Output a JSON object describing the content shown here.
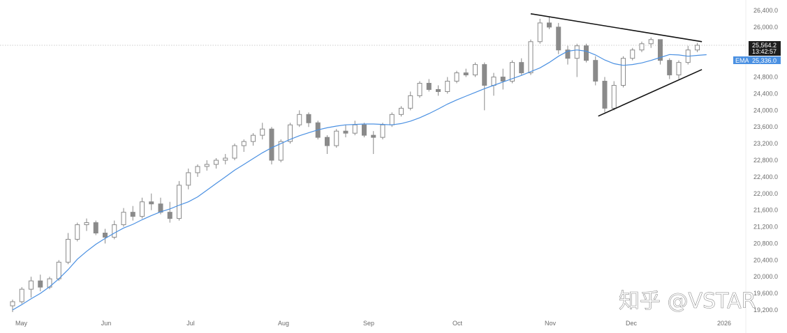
{
  "chart_data": {
    "type": "candlestick",
    "y_ticks": [
      "26,400.0",
      "26,000.0",
      "25,600.0",
      "25,200.0",
      "24,800.0",
      "24,400.0",
      "24,000.0",
      "23,600.0",
      "23,200.0",
      "22,800.0",
      "22,400.0",
      "22,000.0",
      "21,600.0",
      "21,200.0",
      "20,800.0",
      "20,400.0",
      "20,000.0",
      "19,600.0",
      "19,200.0"
    ],
    "y_tick_values": [
      26400,
      26000,
      25600,
      25200,
      24800,
      24400,
      24000,
      23600,
      23200,
      22800,
      22400,
      22000,
      21600,
      21200,
      20800,
      20400,
      20000,
      19600,
      19200
    ],
    "x_ticks": [
      "May",
      "Jun",
      "Jul",
      "Aug",
      "Sep",
      "Oct",
      "Nov",
      "Dec",
      "2026"
    ],
    "ylim": [
      19100,
      26550
    ],
    "grid": false,
    "last_price": {
      "value": 25564.2,
      "label": "25,564.2",
      "countdown": "13:42:57",
      "color": "#1e1e1e"
    },
    "ema": {
      "name": "EMA",
      "value": 25336.0,
      "label": "25,336.0",
      "color": "#4a90e2",
      "values": [
        19200,
        19330,
        19470,
        19600,
        19760,
        19950,
        20170,
        20420,
        20610,
        20780,
        20920,
        21050,
        21170,
        21260,
        21370,
        21470,
        21560,
        21630,
        21720,
        21800,
        21920,
        22080,
        22240,
        22400,
        22560,
        22700,
        22840,
        22980,
        23100,
        23200,
        23300,
        23390,
        23460,
        23530,
        23580,
        23620,
        23650,
        23660,
        23670,
        23670,
        23660,
        23650,
        23680,
        23740,
        23820,
        23920,
        24030,
        24150,
        24250,
        24340,
        24430,
        24520,
        24600,
        24680,
        24760,
        24840,
        24930,
        25020,
        25150,
        25300,
        25420,
        25450,
        25420,
        25330,
        25210,
        25120,
        25080,
        25100,
        25140,
        25200,
        25270,
        25340,
        25330,
        25300,
        25320,
        25336
      ]
    },
    "candles": [
      {
        "o": 19300,
        "h": 19450,
        "l": 19150,
        "c": 19400
      },
      {
        "o": 19400,
        "h": 19750,
        "l": 19350,
        "c": 19700
      },
      {
        "o": 19700,
        "h": 20000,
        "l": 19500,
        "c": 19900
      },
      {
        "o": 19900,
        "h": 20050,
        "l": 19650,
        "c": 19750
      },
      {
        "o": 19750,
        "h": 20000,
        "l": 19700,
        "c": 19950
      },
      {
        "o": 19950,
        "h": 20400,
        "l": 19900,
        "c": 20350
      },
      {
        "o": 20350,
        "h": 21050,
        "l": 20300,
        "c": 20900
      },
      {
        "o": 20900,
        "h": 21300,
        "l": 20850,
        "c": 21250
      },
      {
        "o": 21250,
        "h": 21400,
        "l": 21100,
        "c": 21300
      },
      {
        "o": 21300,
        "h": 21350,
        "l": 21000,
        "c": 21050
      },
      {
        "o": 21050,
        "h": 21150,
        "l": 20800,
        "c": 20950
      },
      {
        "o": 20950,
        "h": 21350,
        "l": 20900,
        "c": 21250
      },
      {
        "o": 21250,
        "h": 21650,
        "l": 21200,
        "c": 21550
      },
      {
        "o": 21550,
        "h": 21700,
        "l": 21350,
        "c": 21450
      },
      {
        "o": 21450,
        "h": 21900,
        "l": 21400,
        "c": 21800
      },
      {
        "o": 21800,
        "h": 22000,
        "l": 21600,
        "c": 21750
      },
      {
        "o": 21750,
        "h": 21900,
        "l": 21500,
        "c": 21550
      },
      {
        "o": 21550,
        "h": 21800,
        "l": 21300,
        "c": 21400
      },
      {
        "o": 21400,
        "h": 22300,
        "l": 21350,
        "c": 22200
      },
      {
        "o": 22200,
        "h": 22600,
        "l": 22100,
        "c": 22500
      },
      {
        "o": 22500,
        "h": 22700,
        "l": 22400,
        "c": 22650
      },
      {
        "o": 22650,
        "h": 22800,
        "l": 22550,
        "c": 22700
      },
      {
        "o": 22700,
        "h": 22850,
        "l": 22600,
        "c": 22800
      },
      {
        "o": 22800,
        "h": 22950,
        "l": 22700,
        "c": 22850
      },
      {
        "o": 22850,
        "h": 23200,
        "l": 22800,
        "c": 23150
      },
      {
        "o": 23150,
        "h": 23300,
        "l": 23000,
        "c": 23250
      },
      {
        "o": 23250,
        "h": 23450,
        "l": 23150,
        "c": 23400
      },
      {
        "o": 23400,
        "h": 23700,
        "l": 23300,
        "c": 23550
      },
      {
        "o": 23550,
        "h": 23600,
        "l": 22700,
        "c": 22800
      },
      {
        "o": 22800,
        "h": 23300,
        "l": 22750,
        "c": 23250
      },
      {
        "o": 23250,
        "h": 23700,
        "l": 23200,
        "c": 23650
      },
      {
        "o": 23650,
        "h": 24000,
        "l": 23600,
        "c": 23900
      },
      {
        "o": 23900,
        "h": 23950,
        "l": 23600,
        "c": 23700
      },
      {
        "o": 23700,
        "h": 23750,
        "l": 23300,
        "c": 23350
      },
      {
        "o": 23350,
        "h": 23400,
        "l": 22950,
        "c": 23150
      },
      {
        "o": 23150,
        "h": 23550,
        "l": 23100,
        "c": 23500
      },
      {
        "o": 23500,
        "h": 23650,
        "l": 23350,
        "c": 23450
      },
      {
        "o": 23450,
        "h": 23750,
        "l": 23400,
        "c": 23650
      },
      {
        "o": 23650,
        "h": 23700,
        "l": 23350,
        "c": 23400
      },
      {
        "o": 23400,
        "h": 23500,
        "l": 22950,
        "c": 23350
      },
      {
        "o": 23350,
        "h": 23700,
        "l": 23300,
        "c": 23650
      },
      {
        "o": 23650,
        "h": 23950,
        "l": 23600,
        "c": 23900
      },
      {
        "o": 23900,
        "h": 24100,
        "l": 23850,
        "c": 24050
      },
      {
        "o": 24050,
        "h": 24450,
        "l": 24000,
        "c": 24350
      },
      {
        "o": 24350,
        "h": 24700,
        "l": 24300,
        "c": 24650
      },
      {
        "o": 24650,
        "h": 24750,
        "l": 24450,
        "c": 24500
      },
      {
        "o": 24500,
        "h": 24600,
        "l": 24350,
        "c": 24450
      },
      {
        "o": 24450,
        "h": 24800,
        "l": 24400,
        "c": 24700
      },
      {
        "o": 24700,
        "h": 24950,
        "l": 24650,
        "c": 24900
      },
      {
        "o": 24900,
        "h": 25000,
        "l": 24800,
        "c": 24850
      },
      {
        "o": 24850,
        "h": 25150,
        "l": 24800,
        "c": 25100
      },
      {
        "o": 25100,
        "h": 25150,
        "l": 24000,
        "c": 24600
      },
      {
        "o": 24600,
        "h": 24900,
        "l": 24350,
        "c": 24800
      },
      {
        "o": 24800,
        "h": 25000,
        "l": 24500,
        "c": 24700
      },
      {
        "o": 24700,
        "h": 25200,
        "l": 24650,
        "c": 25150
      },
      {
        "o": 25150,
        "h": 25250,
        "l": 24850,
        "c": 24900
      },
      {
        "o": 24900,
        "h": 25700,
        "l": 24850,
        "c": 25650
      },
      {
        "o": 25650,
        "h": 26200,
        "l": 25600,
        "c": 26100
      },
      {
        "o": 26100,
        "h": 26250,
        "l": 25950,
        "c": 26000
      },
      {
        "o": 26000,
        "h": 26100,
        "l": 25350,
        "c": 25450
      },
      {
        "o": 25450,
        "h": 25550,
        "l": 25100,
        "c": 25250
      },
      {
        "o": 25250,
        "h": 25600,
        "l": 24800,
        "c": 25550
      },
      {
        "o": 25550,
        "h": 25600,
        "l": 25150,
        "c": 25200
      },
      {
        "o": 25200,
        "h": 25300,
        "l": 24600,
        "c": 24700
      },
      {
        "o": 24700,
        "h": 24800,
        "l": 23950,
        "c": 24050
      },
      {
        "o": 24050,
        "h": 24700,
        "l": 24000,
        "c": 24600
      },
      {
        "o": 24600,
        "h": 25300,
        "l": 24550,
        "c": 25250
      },
      {
        "o": 25250,
        "h": 25500,
        "l": 25200,
        "c": 25450
      },
      {
        "o": 25450,
        "h": 25650,
        "l": 25400,
        "c": 25600
      },
      {
        "o": 25600,
        "h": 25750,
        "l": 25500,
        "c": 25700
      },
      {
        "o": 25700,
        "h": 25700,
        "l": 25100,
        "c": 25200
      },
      {
        "o": 25200,
        "h": 25250,
        "l": 24750,
        "c": 24850
      },
      {
        "o": 24850,
        "h": 25200,
        "l": 24750,
        "c": 25150
      },
      {
        "o": 25150,
        "h": 25550,
        "l": 25100,
        "c": 25450
      },
      {
        "o": 25450,
        "h": 25620,
        "l": 25400,
        "c": 25564
      }
    ],
    "trendlines": [
      {
        "name": "upper",
        "x_start": 56,
        "y_start": 26320,
        "x_end": 74.5,
        "y_end": 25650
      },
      {
        "name": "lower",
        "x_start": 63.3,
        "y_start": 23860,
        "x_end": 74.5,
        "y_end": 24980
      }
    ],
    "colors": {
      "candle": "#8a8a8a",
      "axis_text": "#6b6b6b",
      "trendline": "#111111",
      "ema": "#4a90e2"
    }
  },
  "watermark": "知乎 @VSTAR"
}
